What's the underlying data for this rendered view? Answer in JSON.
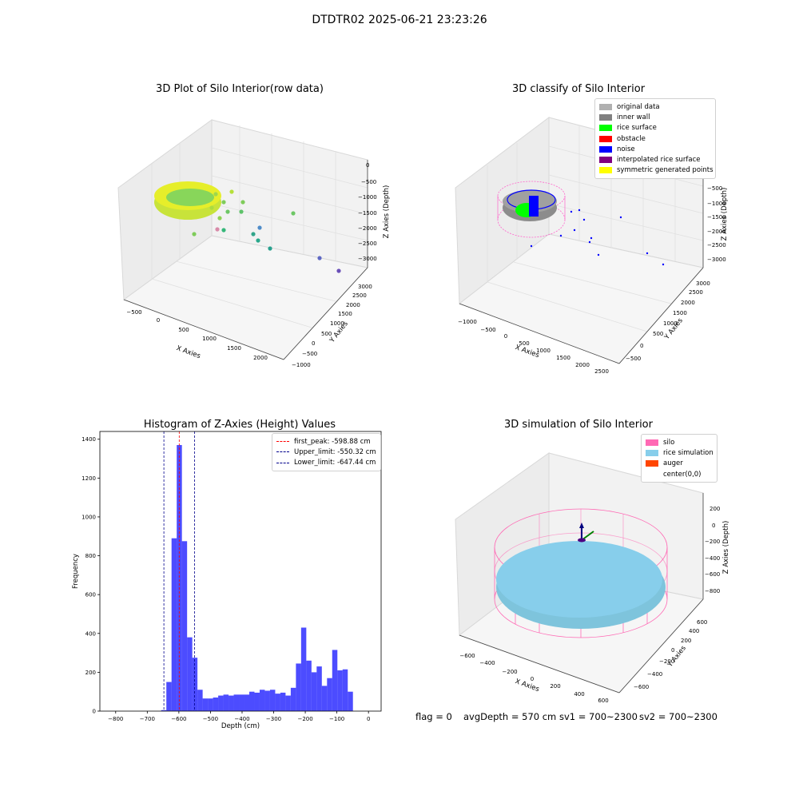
{
  "suptitle": "DTDTR02 2025-06-21 23:23:26",
  "colors": {
    "hist_bar": "#0000ff",
    "first_peak": "#ff0000",
    "limit": "#00008b",
    "pane": "#f2f2f2",
    "silo": "#ff69b4",
    "rice_sim": "#87ceeb"
  },
  "panels": {
    "raw": {
      "title": "3D Plot of Silo Interior(row data)",
      "xlabel": "X Axies",
      "ylabel": "Y Axies",
      "zlabel": "Z Axies (Depth)",
      "xticks": [
        "−500",
        "0",
        "500",
        "1000",
        "1500",
        "2000"
      ],
      "yticks": [
        "−1000",
        "−500",
        "0",
        "500",
        "1000",
        "1500",
        "2000",
        "2500",
        "3000"
      ],
      "zticks": [
        "0",
        "−500",
        "−1000",
        "−1500",
        "−2000",
        "−2500",
        "−3000"
      ]
    },
    "classify": {
      "title": "3D classify of Silo Interior",
      "xlabel": "X Axies",
      "ylabel": "Y Axies",
      "zlabel": "Z Axies (Depth)",
      "xticks": [
        "−1000",
        "−500",
        "0",
        "500",
        "1000",
        "1500",
        "2000",
        "2500"
      ],
      "yticks": [
        "−500",
        "0",
        "500",
        "1000",
        "1500",
        "2000",
        "2500",
        "3000"
      ],
      "zticks": [
        "−500",
        "−1000",
        "−1500",
        "−2000",
        "−2500",
        "−3000"
      ],
      "legend": [
        {
          "label": "original data",
          "color": "#b0b0b0"
        },
        {
          "label": "inner wall",
          "color": "#808080"
        },
        {
          "label": "rice surface",
          "color": "#00ff00"
        },
        {
          "label": "obstacle",
          "color": "#ff0000"
        },
        {
          "label": "noise",
          "color": "#0000ff"
        },
        {
          "label": "interpolated rice surface",
          "color": "#800080"
        },
        {
          "label": "symmetric generated points",
          "color": "#ffff00"
        }
      ]
    },
    "simulation": {
      "title": "3D simulation of Silo Interior",
      "xlabel": "X Axies",
      "ylabel": "Y Axies",
      "zlabel": "Z Axies (Depth)",
      "xticks": [
        "−600",
        "−400",
        "−200",
        "0",
        "200",
        "400",
        "600"
      ],
      "yticks": [
        "−600",
        "−400",
        "−200",
        "0",
        "200",
        "400",
        "600"
      ],
      "zticks": [
        "200",
        "0",
        "−200",
        "−400",
        "−600",
        "−800"
      ],
      "legend": [
        {
          "label": "silo",
          "color": "#ff69b4"
        },
        {
          "label": "rice simulation",
          "color": "#87ceeb"
        },
        {
          "label": "auger",
          "color": "#ff4500"
        },
        {
          "label": "center(0,0)",
          "color": "#ffffff"
        }
      ]
    }
  },
  "status": {
    "flag": "flag = 0",
    "avg_depth": "avgDepth = 570 cm",
    "sv1": "sv1 = 700~2300",
    "sv2": "sv2 = 700~2300"
  },
  "chart_data": [
    {
      "type": "bar",
      "title": "Histogram of Z-Axies (Height) Values",
      "xlabel": "Depth (cm)",
      "ylabel": "Frequency",
      "xlim": [
        -850,
        40
      ],
      "ylim": [
        0,
        1440
      ],
      "xticks": [
        -800,
        -700,
        -600,
        -500,
        -400,
        -300,
        -200,
        -100,
        0
      ],
      "yticks": [
        0,
        200,
        400,
        600,
        800,
        1000,
        1200,
        1400
      ],
      "bin_width": 16.4,
      "bin_starts": [
        -656,
        -639.6,
        -623.2,
        -606.8,
        -590.4,
        -574,
        -557.6,
        -541.2,
        -524.8,
        -508.4,
        -492,
        -475.6,
        -459.2,
        -442.8,
        -426.4,
        -410,
        -393.6,
        -377.2,
        -360.8,
        -344.4,
        -328,
        -311.6,
        -295.2,
        -278.8,
        -262.4,
        -246,
        -229.6,
        -213.2,
        -196.8,
        -180.4,
        -164,
        -147.6,
        -131.2,
        -114.8,
        -98.4,
        -82,
        -65.6,
        -49.2,
        -32.8,
        -16.4
      ],
      "values": [
        5,
        150,
        890,
        1370,
        875,
        380,
        275,
        110,
        65,
        65,
        70,
        80,
        85,
        80,
        85,
        85,
        85,
        100,
        95,
        110,
        105,
        110,
        90,
        95,
        80,
        120,
        245,
        430,
        260,
        200,
        230,
        130,
        170,
        315,
        210,
        215,
        100,
        0,
        0,
        0
      ],
      "vlines": [
        {
          "label": "first_peak: -598.88 cm",
          "x": -598.88,
          "color": "#ff0000"
        },
        {
          "label": "Upper_limit: -550.32 cm",
          "x": -550.32,
          "color": "#00008b"
        },
        {
          "label": "Lower_limit: -647.44 cm",
          "x": -647.44,
          "color": "#00008b"
        }
      ]
    }
  ]
}
